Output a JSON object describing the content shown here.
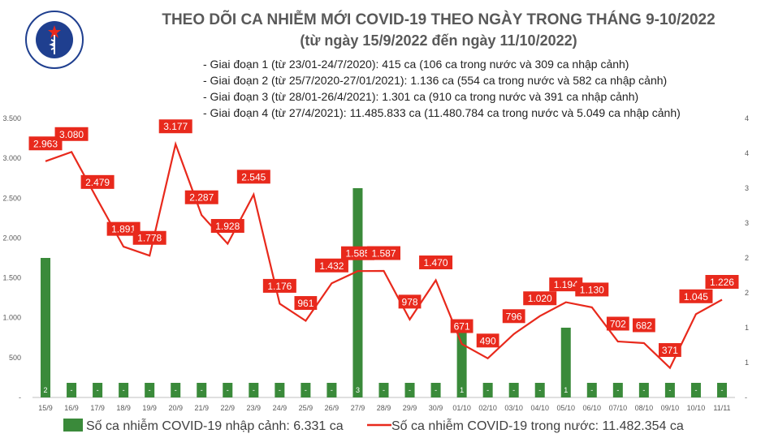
{
  "header": {
    "title": "THEO DÕI CA NHIỄM MỚI COVID-19 THEO NGÀY TRONG THÁNG 9-10/2022",
    "subtitle": "(từ ngày 15/9/2022 đến ngày 11/10/2022)",
    "notes": [
      "- Giai đoạn 1 (từ 23/01-24/7/2020): 415 ca (106 ca trong nước và 309 ca nhập cảnh)",
      "- Giai đoạn 2 (từ 25/7/2020-27/01/2021): 1.136 ca (554 ca trong nước và 582 ca nhập cảnh)",
      "- Giai đoạn 3 (từ 28/01-26/4/2021): 1.301 ca (910 ca trong nước và 391 ca nhập cảnh)",
      "- Giai đoạn 4 (từ 27/4/2021): 11.485.833 ca (11.480.784 ca trong nước và 5.049 ca nhập cảnh)"
    ]
  },
  "logo": {
    "top_text": "BỘ Y TẾ",
    "bottom_text": "MINISTRY OF HEALTH"
  },
  "chart_data": {
    "type": "bar+line",
    "categories": [
      "15/9",
      "16/9",
      "17/9",
      "18/9",
      "19/9",
      "20/9",
      "21/9",
      "22/9",
      "23/9",
      "24/9",
      "25/9",
      "26/9",
      "27/9",
      "28/9",
      "29/9",
      "30/9",
      "01/10",
      "02/10",
      "03/10",
      "04/10",
      "05/10",
      "06/10",
      "07/10",
      "08/10",
      "09/10",
      "10/10",
      "11/11"
    ],
    "series": [
      {
        "name": "Số ca nhiễm COVID-19 nhập cảnh: 6.331 ca",
        "type": "bar",
        "axis": "right",
        "values": [
          2,
          0,
          0,
          0,
          0,
          0,
          0,
          0,
          0,
          0,
          0,
          0,
          3,
          0,
          0,
          0,
          1,
          0,
          0,
          0,
          1,
          0,
          0,
          0,
          0,
          0,
          0
        ],
        "labels": [
          "2",
          "-",
          "-",
          "-",
          "-",
          "-",
          "-",
          "-",
          "-",
          "-",
          "-",
          "-",
          "3",
          "-",
          "-",
          "-",
          "1",
          "-",
          "-",
          "-",
          "1",
          "-",
          "-",
          "-",
          "-",
          "-",
          "-"
        ],
        "color": "#3a8a3a"
      },
      {
        "name": "Số ca nhiễm COVID-19 trong nước: 11.482.354 ca",
        "type": "line",
        "axis": "left",
        "values": [
          2963,
          3080,
          2479,
          1891,
          1778,
          3177,
          2287,
          1928,
          2545,
          1176,
          961,
          1432,
          1585,
          1587,
          978,
          1470,
          671,
          490,
          796,
          1020,
          1194,
          1130,
          702,
          682,
          371,
          1045,
          1226
        ],
        "labels": [
          "2.963",
          "3.080",
          "2.479",
          "1.891",
          "1.778",
          "3.177",
          "2.287",
          "1.928",
          "2.545",
          "1.176",
          "961",
          "1.432",
          "1.585",
          "1.587",
          "978",
          "1.470",
          "671",
          "490",
          "796",
          "1.020",
          "1.194",
          "1.130",
          "702",
          "682",
          "371",
          "1.045",
          "1.226"
        ],
        "color": "#e8291c"
      }
    ],
    "left_axis": {
      "ylim": [
        0,
        3500
      ],
      "ticks": [
        0,
        500,
        1000,
        1500,
        2000,
        2500,
        3000,
        3500
      ],
      "tick_labels": [
        "-",
        "500",
        "1.000",
        "1.500",
        "2.000",
        "2.500",
        "3.000",
        "3.500"
      ]
    },
    "right_axis": {
      "ylim": [
        0,
        4
      ],
      "ticks": [
        0,
        0.5,
        1,
        1.5,
        2,
        2.5,
        3,
        3.5,
        4
      ],
      "tick_labels": [
        "-",
        "1",
        "1",
        "2",
        "2",
        "3",
        "3",
        "4",
        "4"
      ]
    },
    "legend_position": "bottom",
    "grid": false
  }
}
